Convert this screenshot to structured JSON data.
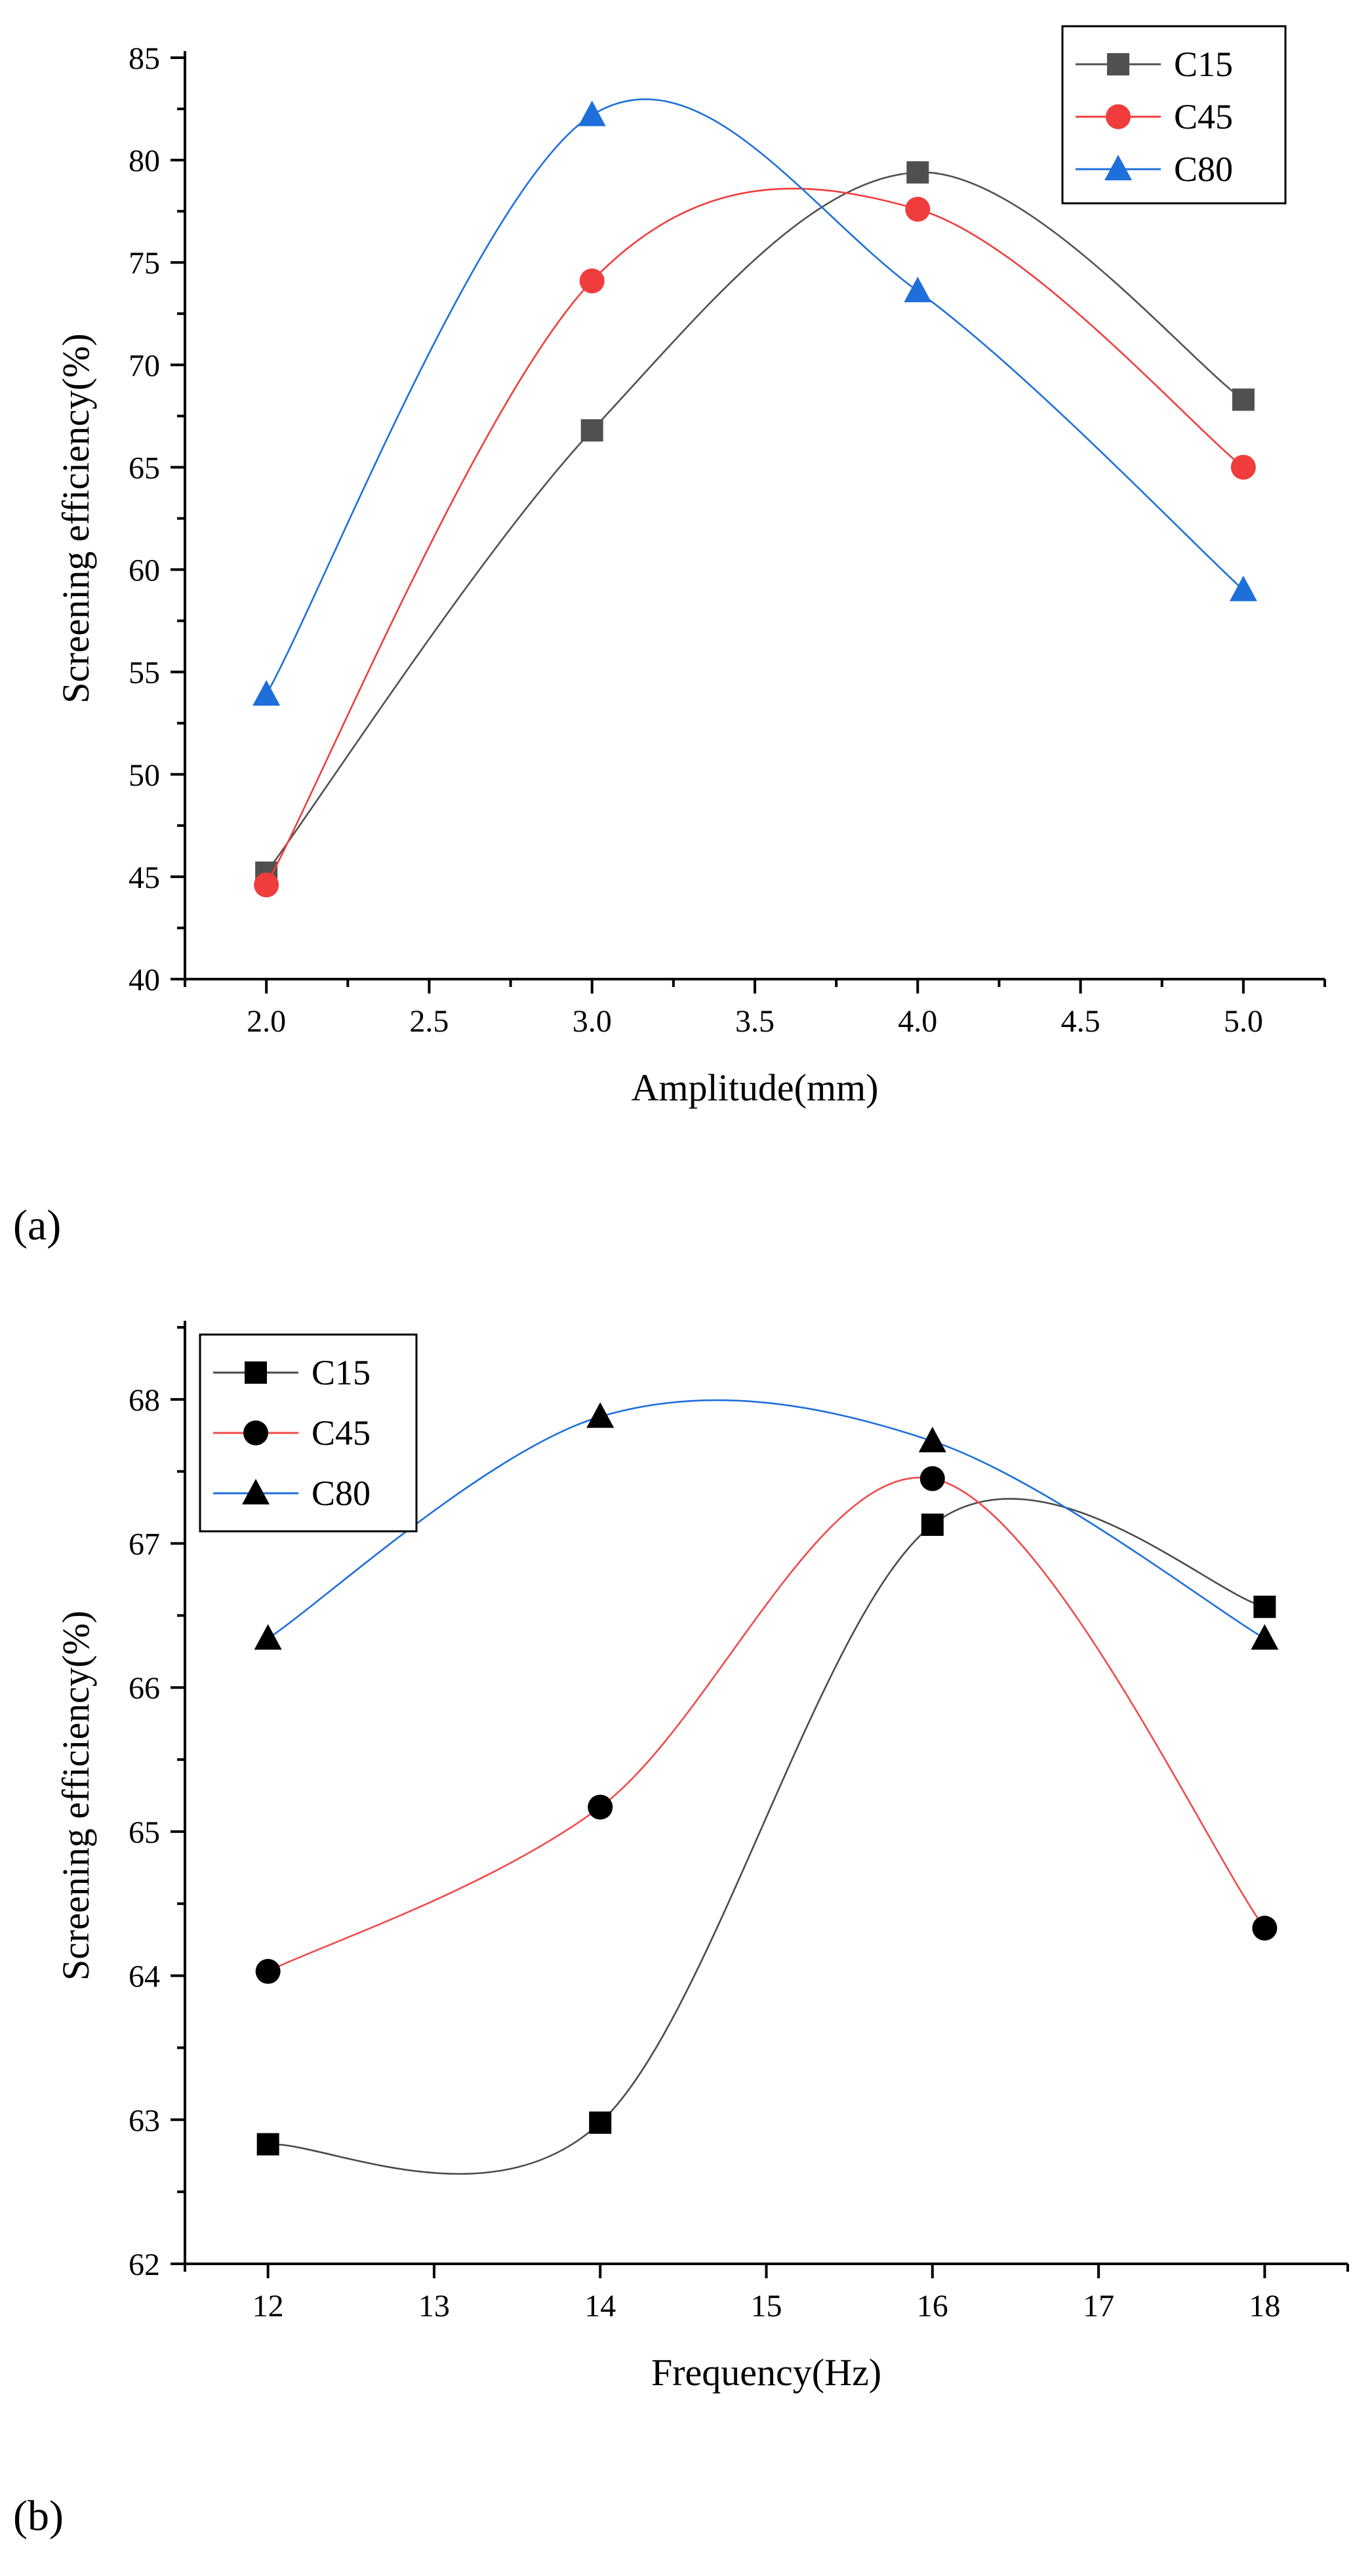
{
  "chart_data": [
    {
      "panel_label": "(a)",
      "type": "line",
      "smooth": true,
      "xlabel": "Amplitude(mm)",
      "ylabel": "Screening efficiency(%)",
      "xlim": [
        1.75,
        5.25
      ],
      "ylim": [
        40,
        85
      ],
      "x_ticks": [
        2.0,
        2.5,
        3.0,
        3.5,
        4.0,
        4.5,
        5.0
      ],
      "x_tick_labels": [
        "2.0",
        "2.5",
        "3.0",
        "3.5",
        "4.0",
        "4.5",
        "5.0"
      ],
      "y_ticks": [
        40,
        45,
        50,
        55,
        60,
        65,
        70,
        75,
        80,
        85
      ],
      "y_tick_labels": [
        "40",
        "45",
        "50",
        "55",
        "60",
        "65",
        "70",
        "75",
        "80",
        "85"
      ],
      "legend_position": "top-right",
      "series": [
        {
          "name": "C15",
          "marker": "square",
          "color": "#505050",
          "x": [
            2.0,
            3.0,
            4.0,
            5.0
          ],
          "values": [
            45.2,
            66.8,
            79.4,
            68.3
          ]
        },
        {
          "name": "C45",
          "marker": "circle",
          "color": "#f03c3c",
          "x": [
            2.0,
            3.0,
            4.0,
            5.0
          ],
          "values": [
            44.6,
            74.1,
            77.6,
            65.0
          ]
        },
        {
          "name": "C80",
          "marker": "triangle",
          "color": "#1e6fd9",
          "x": [
            2.0,
            3.0,
            4.0,
            5.0
          ],
          "values": [
            53.9,
            82.2,
            73.6,
            59.0
          ]
        }
      ]
    },
    {
      "panel_label": "(b)",
      "type": "line",
      "smooth": true,
      "xlabel": "Frequency(Hz)",
      "ylabel": "Screening efficiency(%)",
      "xlim": [
        11.5,
        18.5
      ],
      "ylim": [
        62,
        68.5
      ],
      "x_ticks": [
        12,
        13,
        14,
        15,
        16,
        17,
        18
      ],
      "x_tick_labels": [
        "12",
        "13",
        "14",
        "15",
        "16",
        "17",
        "18"
      ],
      "y_ticks": [
        62,
        63,
        64,
        65,
        66,
        67,
        68
      ],
      "y_tick_labels": [
        "62",
        "63",
        "64",
        "65",
        "66",
        "67",
        "68"
      ],
      "legend_position": "top-left",
      "series": [
        {
          "name": "C15",
          "marker": "square",
          "color": "#000000",
          "line_color": "#4a4a4a",
          "x": [
            12,
            14,
            16,
            18
          ],
          "values": [
            62.83,
            62.98,
            67.13,
            66.56
          ]
        },
        {
          "name": "C45",
          "marker": "circle",
          "color": "#000000",
          "line_color": "#ef4b4b",
          "x": [
            12,
            14,
            16,
            18
          ],
          "values": [
            64.03,
            65.17,
            67.45,
            64.33
          ]
        },
        {
          "name": "C80",
          "marker": "triangle",
          "color": "#000000",
          "line_color": "#1e6fd9",
          "x": [
            12,
            14,
            16,
            18
          ],
          "values": [
            66.34,
            67.88,
            67.71,
            66.34
          ]
        }
      ]
    }
  ]
}
